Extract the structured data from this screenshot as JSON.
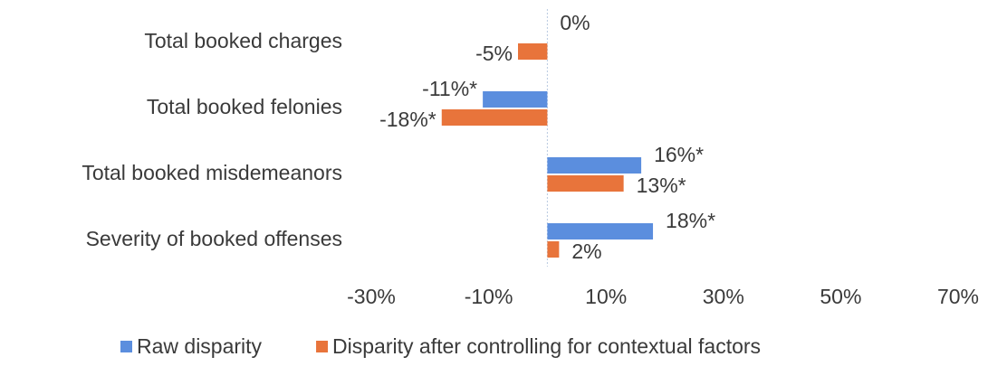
{
  "chart_data": {
    "type": "barh",
    "categories": [
      "Total booked charges",
      "Total booked felonies",
      "Total booked misdemeanors",
      "Severity of booked offenses"
    ],
    "series": [
      {
        "name": "Raw disparity",
        "color": "#5b8ede",
        "values": [
          0,
          -11,
          16,
          18
        ],
        "value_labels": [
          "0%",
          "-11%*",
          "16%*",
          "18%*"
        ]
      },
      {
        "name": "Disparity after controlling for contextual factors",
        "color": "#e8743b",
        "values": [
          -5,
          -18,
          13,
          2
        ],
        "value_labels": [
          "-5%",
          "-18%*",
          "13%*",
          "2%"
        ]
      }
    ],
    "xlim": [
      -30,
      70
    ],
    "xticks": [
      {
        "value": -30,
        "label": "-30%"
      },
      {
        "value": -10,
        "label": "-10%"
      },
      {
        "value": 10,
        "label": "10%"
      },
      {
        "value": 30,
        "label": "30%"
      },
      {
        "value": 50,
        "label": "50%"
      },
      {
        "value": 70,
        "label": "70%"
      }
    ],
    "legend": "bottom",
    "grid": false
  }
}
